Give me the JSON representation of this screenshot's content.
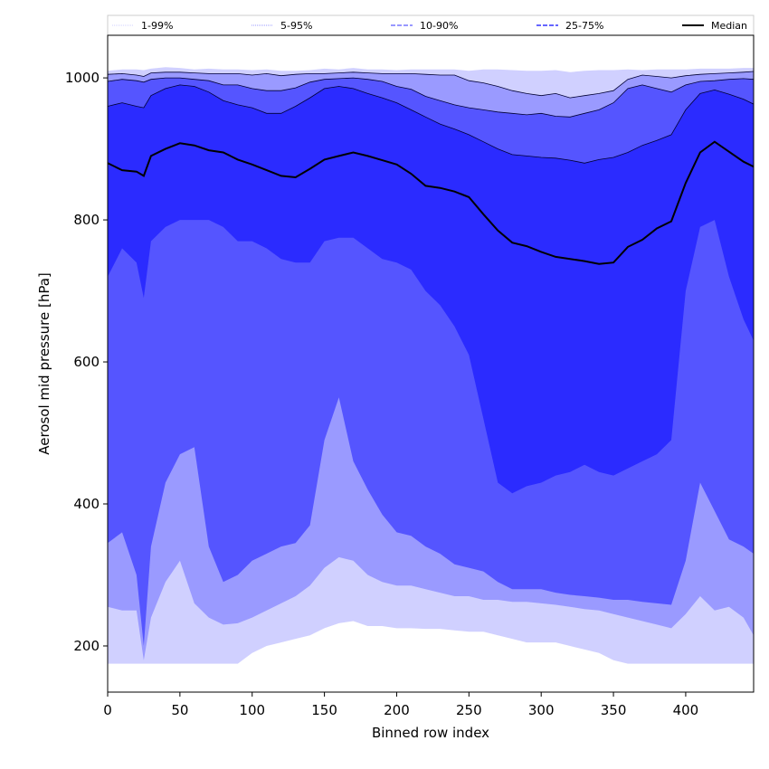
{
  "chart_data": {
    "type": "area",
    "xlabel": "Binned row index",
    "ylabel": "Aerosol mid pressure [hPa]",
    "xlim": [
      0,
      447
    ],
    "ylim": [
      135,
      1060
    ],
    "x_ticks": [
      0,
      50,
      100,
      150,
      200,
      250,
      300,
      350,
      400
    ],
    "y_ticks": [
      200,
      400,
      600,
      800,
      1000
    ],
    "floor_value": 175,
    "legend_position": "top (spanning full width above plot)",
    "x": [
      0,
      10,
      20,
      25,
      30,
      40,
      50,
      60,
      70,
      80,
      90,
      100,
      110,
      120,
      130,
      140,
      150,
      160,
      170,
      180,
      190,
      200,
      210,
      220,
      230,
      240,
      250,
      260,
      270,
      280,
      290,
      300,
      310,
      320,
      330,
      340,
      350,
      360,
      370,
      380,
      390,
      400,
      410,
      420,
      430,
      440,
      447
    ],
    "bands": [
      {
        "name": "1-99%",
        "color": "#d0d0ff",
        "lower": [
          175,
          175,
          175,
          175,
          175,
          175,
          175,
          175,
          175,
          175,
          175,
          190,
          200,
          205,
          210,
          215,
          225,
          232,
          235,
          228,
          228,
          225,
          225,
          224,
          224,
          222,
          220,
          220,
          215,
          210,
          205,
          205,
          205,
          200,
          195,
          190,
          180,
          175,
          175,
          175,
          175,
          175,
          175,
          175,
          175,
          175,
          175
        ],
        "upper": [
          1010,
          1012,
          1012,
          1011,
          1013,
          1015,
          1014,
          1012,
          1013,
          1012,
          1012,
          1011,
          1012,
          1010,
          1010,
          1011,
          1013,
          1012,
          1014,
          1012,
          1012,
          1011,
          1012,
          1012,
          1012,
          1012,
          1010,
          1012,
          1012,
          1011,
          1010,
          1010,
          1011,
          1008,
          1010,
          1011,
          1011,
          1012,
          1011,
          1012,
          1012,
          1012,
          1013,
          1013,
          1013,
          1014,
          1014
        ]
      },
      {
        "name": "5-95%",
        "color": "#9a9aff",
        "lower": [
          255,
          250,
          250,
          180,
          240,
          290,
          320,
          260,
          240,
          230,
          232,
          240,
          250,
          260,
          270,
          285,
          310,
          325,
          320,
          300,
          290,
          285,
          285,
          280,
          275,
          270,
          270,
          265,
          265,
          262,
          262,
          260,
          258,
          255,
          252,
          250,
          245,
          240,
          235,
          230,
          225,
          245,
          270,
          250,
          255,
          240,
          215
        ],
        "upper": [
          1005,
          1006,
          1004,
          1002,
          1007,
          1008,
          1008,
          1007,
          1006,
          1006,
          1006,
          1004,
          1006,
          1003,
          1005,
          1006,
          1006,
          1007,
          1008,
          1007,
          1006,
          1006,
          1006,
          1005,
          1004,
          1004,
          996,
          993,
          988,
          982,
          978,
          975,
          978,
          972,
          975,
          978,
          982,
          998,
          1004,
          1002,
          1000,
          1003,
          1005,
          1006,
          1007,
          1008,
          1009
        ]
      },
      {
        "name": "10-90%",
        "color": "#5555ff",
        "lower": [
          345,
          360,
          300,
          200,
          340,
          430,
          470,
          480,
          340,
          290,
          300,
          320,
          330,
          340,
          345,
          370,
          490,
          550,
          460,
          420,
          385,
          360,
          355,
          340,
          330,
          315,
          310,
          305,
          290,
          280,
          280,
          280,
          275,
          272,
          270,
          268,
          265,
          265,
          262,
          260,
          258,
          320,
          430,
          390,
          350,
          340,
          330
        ],
        "upper": [
          995,
          998,
          996,
          994,
          998,
          1000,
          1000,
          998,
          996,
          990,
          990,
          985,
          982,
          982,
          986,
          994,
          998,
          999,
          1000,
          998,
          995,
          988,
          984,
          974,
          968,
          962,
          958,
          955,
          952,
          950,
          948,
          950,
          946,
          945,
          950,
          955,
          965,
          985,
          990,
          985,
          980,
          990,
          995,
          996,
          998,
          999,
          998
        ]
      },
      {
        "name": "25-75%",
        "color": "#2b2bff",
        "lower": [
          720,
          760,
          740,
          690,
          770,
          790,
          800,
          800,
          800,
          790,
          770,
          770,
          760,
          745,
          740,
          740,
          770,
          775,
          775,
          760,
          745,
          740,
          730,
          700,
          680,
          650,
          610,
          520,
          430,
          415,
          425,
          430,
          440,
          445,
          455,
          445,
          440,
          450,
          460,
          470,
          490,
          700,
          790,
          800,
          720,
          660,
          630
        ],
        "upper": [
          960,
          965,
          960,
          958,
          975,
          985,
          990,
          988,
          980,
          968,
          962,
          958,
          950,
          950,
          960,
          972,
          985,
          988,
          985,
          978,
          972,
          965,
          955,
          945,
          935,
          928,
          920,
          910,
          900,
          892,
          890,
          888,
          887,
          884,
          880,
          885,
          888,
          895,
          905,
          912,
          920,
          955,
          978,
          983,
          977,
          970,
          963
        ]
      }
    ],
    "series": [
      {
        "name": "Median",
        "color": "#000000",
        "values": [
          880,
          870,
          868,
          862,
          890,
          900,
          908,
          905,
          898,
          895,
          885,
          878,
          870,
          862,
          860,
          872,
          885,
          890,
          895,
          890,
          884,
          878,
          865,
          848,
          845,
          840,
          832,
          808,
          785,
          768,
          763,
          755,
          748,
          745,
          742,
          738,
          740,
          762,
          772,
          788,
          798,
          852,
          895,
          910,
          896,
          882,
          875
        ]
      }
    ],
    "legend": [
      {
        "label": "1-99%",
        "style": "dotted-thin",
        "color": "#d0d0ff"
      },
      {
        "label": "5-95%",
        "style": "dotted-thin",
        "color": "#9a9aff"
      },
      {
        "label": "10-90%",
        "style": "dashed",
        "color": "#7777ff"
      },
      {
        "label": "25-75%",
        "style": "dashed",
        "color": "#3333ff"
      },
      {
        "label": "Median",
        "style": "solid",
        "color": "#000000"
      }
    ]
  }
}
